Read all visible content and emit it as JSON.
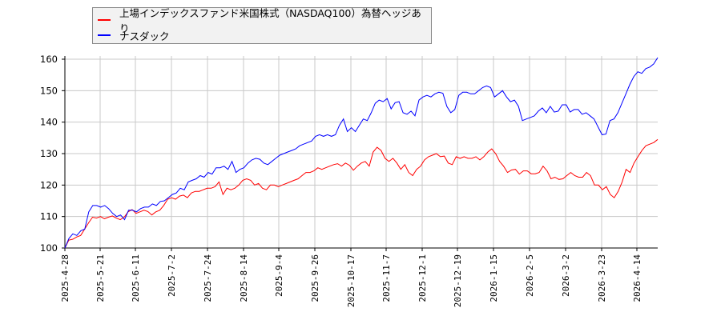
{
  "chart_data": {
    "type": "line",
    "title": "",
    "xlabel": "",
    "ylabel": "",
    "ylim": [
      100,
      160
    ],
    "yticks": [
      100,
      110,
      120,
      130,
      140,
      150,
      160
    ],
    "xtick_labels": [
      "2025-4-28",
      "2025-5-21",
      "2025-6-11",
      "2025-7-2",
      "2025-7-24",
      "2025-8-14",
      "2025-9-4",
      "2025-9-26",
      "2025-10-17",
      "2025-11-7",
      "2025-12-1",
      "2025-12-19",
      "2026-1-15",
      "2026-2-5",
      "2026-3-2",
      "2026-3-23",
      "2026-4-14"
    ],
    "grid": true,
    "legend_position": "top-left",
    "series": [
      {
        "name": "上場インデックスファンド米国株式（NASDAQ100）為替ヘッジあり",
        "color": "#ff0000",
        "values": [
          100,
          102.5,
          102.8,
          103.5,
          104,
          106,
          108,
          109.8,
          109.5,
          110,
          109.3,
          109.8,
          110.2,
          109.5,
          109,
          109.8,
          111.5,
          112.2,
          111,
          111.5,
          112,
          111.6,
          110.5,
          111.5,
          112,
          113.5,
          115.5,
          116,
          115.5,
          116.5,
          116.8,
          116,
          117.5,
          118,
          118,
          118.5,
          119,
          119,
          119.5,
          121,
          117,
          119,
          118.5,
          119,
          120,
          121.5,
          122,
          121.5,
          120,
          120.5,
          119,
          118.5,
          120,
          120,
          119.5,
          120,
          120.5,
          121,
          121.5,
          122,
          123,
          124,
          124,
          124.5,
          125.5,
          125,
          125.5,
          126,
          126.5,
          126.8,
          126,
          127,
          126.3,
          124.7,
          126,
          127,
          127.5,
          126,
          130.5,
          132,
          131,
          128.5,
          127.5,
          128.5,
          127,
          125,
          126.5,
          124,
          123,
          125,
          126,
          128,
          129,
          129.5,
          130,
          129,
          129.2,
          127,
          126.5,
          129,
          128.5,
          129,
          128.5,
          128.5,
          129,
          128,
          129,
          130.5,
          131.5,
          130,
          127.5,
          126,
          124,
          124.8,
          125,
          123.5,
          124.5,
          124.5,
          123.6,
          123.6,
          124,
          126,
          124.5,
          122,
          122.5,
          121.8,
          122,
          123,
          124,
          123,
          122.5,
          122.5,
          124,
          123,
          120,
          120,
          118.5,
          119.5,
          117,
          116,
          118,
          121,
          125,
          124,
          127,
          129,
          131,
          132.5,
          133,
          133.5,
          134.5
        ]
      },
      {
        "name": "ナスダック",
        "color": "#0000ff",
        "values": [
          100,
          103,
          104.5,
          104,
          105.5,
          106,
          111.5,
          113.5,
          113.5,
          113,
          113.5,
          112.5,
          111,
          110,
          110.5,
          109,
          112,
          112,
          111.5,
          112.5,
          113,
          113,
          114,
          113.5,
          114.8,
          115,
          116,
          117,
          117.5,
          119,
          118.5,
          121,
          121.5,
          122,
          123,
          122.5,
          124,
          123.5,
          125.5,
          125.5,
          126,
          125,
          127.5,
          124,
          125,
          125.5,
          127,
          128,
          128.5,
          128.2,
          127,
          126.5,
          127.5,
          128.5,
          129.5,
          130,
          130.5,
          131,
          131.5,
          132.5,
          133,
          133.5,
          134,
          135.5,
          136,
          135.5,
          136,
          135.5,
          136,
          139,
          141,
          137,
          138.2,
          137,
          139,
          141,
          140.5,
          143,
          146,
          147,
          146.5,
          147.5,
          144.2,
          146.2,
          146.5,
          143,
          142.5,
          143.5,
          142,
          147,
          148,
          148.5,
          148,
          149,
          149.5,
          149.2,
          145,
          143,
          144,
          148.5,
          149.5,
          149.5,
          149,
          149,
          150,
          151,
          151.5,
          151,
          148,
          149,
          150,
          148,
          146.5,
          147,
          145,
          140.5,
          141,
          141.5,
          142,
          143.5,
          144.5,
          143,
          145,
          143.2,
          143.5,
          145.5,
          145.5,
          143.2,
          144,
          144,
          142.5,
          143,
          142,
          141,
          138.5,
          136,
          136.2,
          140.5,
          141,
          143,
          146,
          149,
          152,
          154.5,
          156,
          155.5,
          157,
          157.5,
          158.5,
          160.5
        ]
      }
    ]
  },
  "legend": {
    "items": [
      {
        "label": "上場インデックスファンド米国株式（NASDAQ100）為替ヘッジあり",
        "color": "#ff0000"
      },
      {
        "label": "ナスダック",
        "color": "#0000ff"
      }
    ]
  },
  "colors": {
    "grid": "#c8c8c8",
    "axis": "#000000",
    "legend_bg": "#f2f2f2",
    "legend_border": "#888888"
  }
}
